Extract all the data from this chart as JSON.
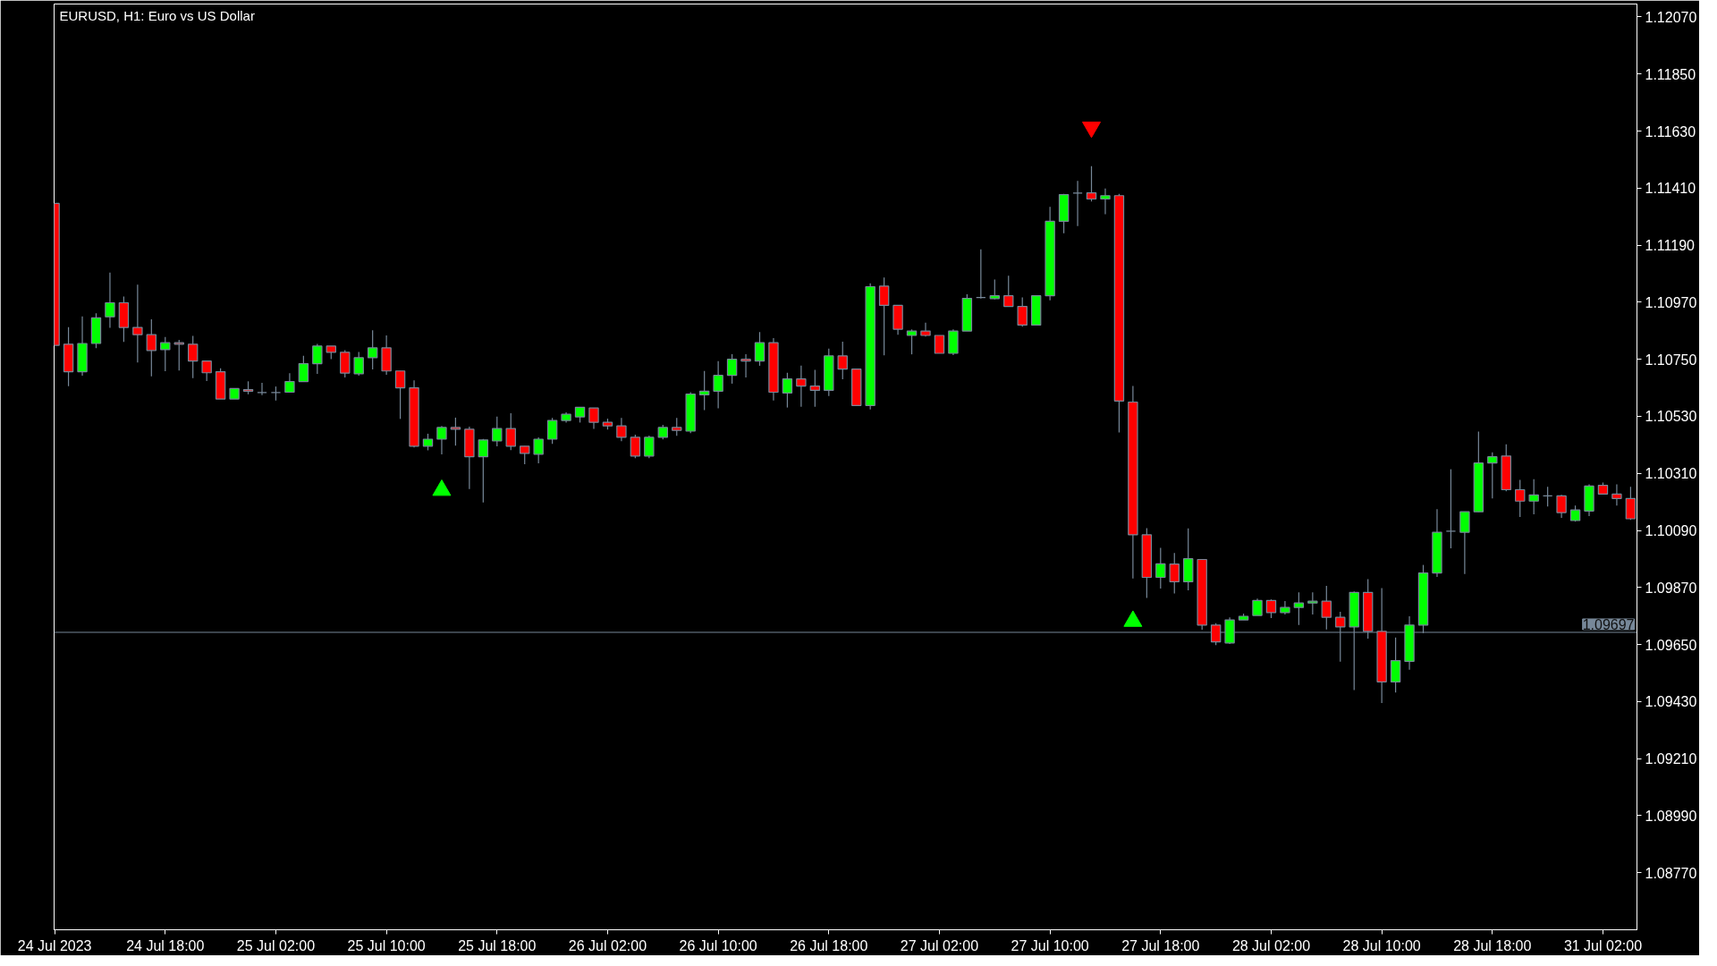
{
  "chart_data": {
    "type": "candlestick",
    "title": "EURUSD, H1:  Euro vs US Dollar",
    "categories": [
      "24 Jul 2023",
      null,
      null,
      null,
      null,
      null,
      null,
      null,
      "24 Jul 18:00",
      null,
      null,
      null,
      null,
      null,
      null,
      null,
      "25 Jul 02:00",
      null,
      null,
      null,
      null,
      null,
      null,
      null,
      "25 Jul 10:00",
      null,
      null,
      null,
      null,
      null,
      null,
      null,
      "25 Jul 18:00",
      null,
      null,
      null,
      null,
      null,
      null,
      null,
      "26 Jul 02:00",
      null,
      null,
      null,
      null,
      null,
      null,
      null,
      "26 Jul 10:00",
      null,
      null,
      null,
      null,
      null,
      null,
      null,
      "26 Jul 18:00",
      null,
      null,
      null,
      null,
      null,
      null,
      null,
      "27 Jul 02:00",
      null,
      null,
      null,
      null,
      null,
      null,
      null,
      "27 Jul 10:00",
      null,
      null,
      null,
      null,
      null,
      null,
      null,
      "27 Jul 18:00",
      null,
      null,
      null,
      null,
      null,
      null,
      null,
      "28 Jul 02:00",
      null,
      null,
      null,
      null,
      null,
      null,
      null,
      "28 Jul 10:00",
      null,
      null,
      null,
      null,
      null,
      null,
      null,
      "28 Jul 18:00",
      null,
      null,
      null,
      null,
      null,
      null,
      null,
      "31 Jul 02:00",
      null,
      null
    ],
    "ohlc": [
      [
        1.11351,
        1.11351,
        1.10804,
        1.10804
      ],
      [
        1.10808,
        1.10874,
        1.10646,
        1.10702
      ],
      [
        1.10702,
        1.10915,
        1.10687,
        1.10811
      ],
      [
        1.10811,
        1.10927,
        1.10793,
        1.1091
      ],
      [
        1.10914,
        1.11084,
        1.10871,
        1.10968
      ],
      [
        1.10968,
        1.10992,
        1.10817,
        1.10873
      ],
      [
        1.10873,
        1.11038,
        1.10738,
        1.10845
      ],
      [
        1.10845,
        1.10904,
        1.10684,
        1.10784
      ],
      [
        1.10787,
        1.10836,
        1.10704,
        1.10814
      ],
      [
        1.10814,
        1.10825,
        1.10707,
        1.10808
      ],
      [
        1.10808,
        1.1084,
        1.10677,
        1.10743
      ],
      [
        1.10743,
        1.10743,
        1.10666,
        1.10698
      ],
      [
        1.10702,
        1.10715,
        1.10597,
        1.10597
      ],
      [
        1.10597,
        1.10637,
        1.10597,
        1.10637
      ],
      [
        1.10633,
        1.10665,
        1.10615,
        1.10627
      ],
      [
        1.10622,
        1.10659,
        1.10612,
        1.10622
      ],
      [
        1.10622,
        1.10645,
        1.10591,
        1.10622
      ],
      [
        1.10623,
        1.10696,
        1.10623,
        1.10664
      ],
      [
        1.10664,
        1.10764,
        1.10664,
        1.10733
      ],
      [
        1.10733,
        1.10809,
        1.10694,
        1.10801
      ],
      [
        1.10801,
        1.10801,
        1.10751,
        1.10777
      ],
      [
        1.10777,
        1.10785,
        1.1068,
        1.10697
      ],
      [
        1.10694,
        1.10778,
        1.10687,
        1.10756
      ],
      [
        1.10756,
        1.10862,
        1.10711,
        1.10794
      ],
      [
        1.10794,
        1.10842,
        1.1069,
        1.10705
      ],
      [
        1.10705,
        1.10705,
        1.1052,
        1.1064
      ],
      [
        1.1064,
        1.10669,
        1.1041,
        1.10415
      ],
      [
        1.10415,
        1.10463,
        1.10399,
        1.10442
      ],
      [
        1.10442,
        1.10493,
        1.10383,
        1.10487
      ],
      [
        1.10487,
        1.10525,
        1.10417,
        1.1048
      ],
      [
        1.1048,
        1.1049,
        1.1025,
        1.10374
      ],
      [
        1.10374,
        1.10443,
        1.10198,
        1.10439
      ],
      [
        1.10435,
        1.10529,
        1.10414,
        1.10483
      ],
      [
        1.10483,
        1.10542,
        1.104,
        1.10415
      ],
      [
        1.10415,
        1.10415,
        1.10345,
        1.10387
      ],
      [
        1.10384,
        1.10449,
        1.10349,
        1.10442
      ],
      [
        1.10442,
        1.10524,
        1.10424,
        1.10514
      ],
      [
        1.10514,
        1.10545,
        1.10506,
        1.10538
      ],
      [
        1.10528,
        1.10565,
        1.10506,
        1.10565
      ],
      [
        1.10562,
        1.10562,
        1.10482,
        1.10507
      ],
      [
        1.10507,
        1.10521,
        1.10479,
        1.10493
      ],
      [
        1.10493,
        1.10524,
        1.10434,
        1.10449
      ],
      [
        1.10449,
        1.10459,
        1.10369,
        1.10377
      ],
      [
        1.10377,
        1.10456,
        1.10369,
        1.10449
      ],
      [
        1.10449,
        1.10497,
        1.10441,
        1.10487
      ],
      [
        1.10487,
        1.10524,
        1.10455,
        1.10476
      ],
      [
        1.10473,
        1.10623,
        1.10465,
        1.10616
      ],
      [
        1.10613,
        1.10705,
        1.10554,
        1.10627
      ],
      [
        1.10627,
        1.10743,
        1.10561,
        1.10688
      ],
      [
        1.10688,
        1.1077,
        1.10656,
        1.1075
      ],
      [
        1.1075,
        1.1077,
        1.1068,
        1.10743
      ],
      [
        1.10743,
        1.10855,
        1.10725,
        1.10814
      ],
      [
        1.10814,
        1.10832,
        1.10591,
        1.10623
      ],
      [
        1.1062,
        1.10698,
        1.10564,
        1.10674
      ],
      [
        1.10674,
        1.10726,
        1.10567,
        1.10647
      ],
      [
        1.10647,
        1.10709,
        1.10567,
        1.1063
      ],
      [
        1.1063,
        1.10791,
        1.10608,
        1.10763
      ],
      [
        1.10763,
        1.10818,
        1.10673,
        1.10712
      ],
      [
        1.10712,
        1.10712,
        1.10572,
        1.10572
      ],
      [
        1.10572,
        1.11043,
        1.10557,
        1.1103
      ],
      [
        1.11032,
        1.11065,
        1.10765,
        1.10958
      ],
      [
        1.10958,
        1.10958,
        1.10845,
        1.10866
      ],
      [
        1.10842,
        1.10865,
        1.10769,
        1.10859
      ],
      [
        1.10859,
        1.10891,
        1.10838,
        1.10842
      ],
      [
        1.10842,
        1.10842,
        1.10773,
        1.10773
      ],
      [
        1.10773,
        1.10865,
        1.10766,
        1.10859
      ],
      [
        1.10859,
        1.11001,
        1.10859,
        1.10985
      ],
      [
        1.10988,
        1.11174,
        1.10984,
        1.10988
      ],
      [
        1.10984,
        1.11058,
        1.10981,
        1.10995
      ],
      [
        1.10995,
        1.11072,
        1.10954,
        1.10954
      ],
      [
        1.10954,
        1.10989,
        1.10876,
        1.10882
      ],
      [
        1.10882,
        1.10995,
        1.10882,
        1.10995
      ],
      [
        1.10995,
        1.11338,
        1.10977,
        1.11282
      ],
      [
        1.11282,
        1.11388,
        1.11236,
        1.11385
      ],
      [
        1.11391,
        1.11438,
        1.11264,
        1.11391
      ],
      [
        1.11392,
        1.11495,
        1.11359,
        1.11368
      ],
      [
        1.11368,
        1.11409,
        1.11309,
        1.11381
      ],
      [
        1.11381,
        1.11388,
        1.10468,
        1.10589
      ],
      [
        1.10585,
        1.10647,
        1.09905,
        1.10073
      ],
      [
        1.10073,
        1.10099,
        1.0983,
        1.09909
      ],
      [
        1.09909,
        1.10023,
        1.09866,
        1.09961
      ],
      [
        1.0996,
        1.10003,
        1.09847,
        1.09892
      ],
      [
        1.09892,
        1.10098,
        1.09859,
        1.09981
      ],
      [
        1.09978,
        1.09978,
        1.09707,
        1.09725
      ],
      [
        1.09725,
        1.09732,
        1.09648,
        1.0966
      ],
      [
        1.09656,
        1.09755,
        1.09652,
        1.09745
      ],
      [
        1.09745,
        1.09769,
        1.09745,
        1.09759
      ],
      [
        1.09762,
        1.09827,
        1.09762,
        1.0982
      ],
      [
        1.0982,
        1.09824,
        1.09752,
        1.09773
      ],
      [
        1.09773,
        1.09818,
        1.09766,
        1.09793
      ],
      [
        1.09793,
        1.09851,
        1.09725,
        1.0981
      ],
      [
        1.0981,
        1.09851,
        1.09766,
        1.09817
      ],
      [
        1.09817,
        1.09876,
        1.09708,
        1.09755
      ],
      [
        1.09755,
        1.09776,
        1.09584,
        1.09718
      ],
      [
        1.09718,
        1.09855,
        1.09474,
        1.09851
      ],
      [
        1.09851,
        1.09902,
        1.09673,
        1.09701
      ],
      [
        1.09701,
        1.09868,
        1.09424,
        1.09506
      ],
      [
        1.09506,
        1.09677,
        1.09465,
        1.09588
      ],
      [
        1.09585,
        1.09759,
        1.09553,
        1.09725
      ],
      [
        1.09725,
        1.09957,
        1.09694,
        1.09926
      ],
      [
        1.09926,
        1.10172,
        1.09911,
        1.10083
      ],
      [
        1.10087,
        1.10326,
        1.10021,
        1.10087
      ],
      [
        1.10083,
        1.10162,
        1.09922,
        1.10162
      ],
      [
        1.10162,
        1.10471,
        1.10162,
        1.1035
      ],
      [
        1.1035,
        1.10391,
        1.10213,
        1.10374
      ],
      [
        1.10377,
        1.10422,
        1.10241,
        1.10247
      ],
      [
        1.10247,
        1.10285,
        1.10142,
        1.10203
      ],
      [
        1.10203,
        1.10288,
        1.10152,
        1.10227
      ],
      [
        1.10223,
        1.10258,
        1.10182,
        1.10223
      ],
      [
        1.10223,
        1.10227,
        1.10138,
        1.10159
      ],
      [
        1.10128,
        1.10186,
        1.10124,
        1.10169
      ],
      [
        1.10165,
        1.10268,
        1.10145,
        1.10261
      ],
      [
        1.10264,
        1.10275,
        1.1023,
        1.1023
      ],
      [
        1.1023,
        1.10268,
        1.10186,
        1.10213
      ],
      [
        1.10213,
        1.10258,
        1.10131,
        1.10135
      ]
    ],
    "colors": [
      "#ff0000",
      "#ff0000",
      "#00ff00",
      "#00ff00",
      "#00ff00",
      "#ff0000",
      "#ff0000",
      "#ff0000",
      "#00ff00",
      "#ff0000",
      "#ff0000",
      "#ff0000",
      "#ff0000",
      "#00ff00",
      "#ff0000",
      "#778899",
      "#778899",
      "#00ff00",
      "#00ff00",
      "#00ff00",
      "#ff0000",
      "#ff0000",
      "#00ff00",
      "#00ff00",
      "#ff0000",
      "#ff0000",
      "#ff0000",
      "#00ff00",
      "#00ff00",
      "#ff0000",
      "#ff0000",
      "#00ff00",
      "#00ff00",
      "#ff0000",
      "#ff0000",
      "#00ff00",
      "#00ff00",
      "#00ff00",
      "#00ff00",
      "#ff0000",
      "#ff0000",
      "#ff0000",
      "#ff0000",
      "#00ff00",
      "#00ff00",
      "#ff0000",
      "#00ff00",
      "#00ff00",
      "#00ff00",
      "#00ff00",
      "#ff0000",
      "#00ff00",
      "#ff0000",
      "#00ff00",
      "#ff0000",
      "#ff0000",
      "#00ff00",
      "#ff0000",
      "#ff0000",
      "#00ff00",
      "#ff0000",
      "#ff0000",
      "#00ff00",
      "#ff0000",
      "#ff0000",
      "#00ff00",
      "#00ff00",
      "#778899",
      "#00ff00",
      "#ff0000",
      "#ff0000",
      "#00ff00",
      "#00ff00",
      "#00ff00",
      "#778899",
      "#ff0000",
      "#00ff00",
      "#ff0000",
      "#ff0000",
      "#ff0000",
      "#00ff00",
      "#ff0000",
      "#00ff00",
      "#ff0000",
      "#ff0000",
      "#00ff00",
      "#00ff00",
      "#00ff00",
      "#ff0000",
      "#00ff00",
      "#00ff00",
      "#00ff00",
      "#ff0000",
      "#ff0000",
      "#00ff00",
      "#ff0000",
      "#ff0000",
      "#00ff00",
      "#00ff00",
      "#00ff00",
      "#00ff00",
      "#778899",
      "#00ff00",
      "#00ff00",
      "#00ff00",
      "#ff0000",
      "#ff0000",
      "#00ff00",
      "#778899",
      "#ff0000",
      "#00ff00",
      "#00ff00",
      "#ff0000",
      "#ff0000",
      "#ff0000"
    ],
    "series": [
      {
        "type": "scatter",
        "color": "#00ff00",
        "values": [
          null,
          null,
          null,
          null,
          null,
          null,
          null,
          null,
          null,
          null,
          null,
          null,
          null,
          null,
          null,
          null,
          null,
          null,
          null,
          null,
          null,
          null,
          null,
          null,
          null,
          null,
          null,
          null,
          1.10245,
          null,
          null,
          null,
          null,
          null,
          null,
          null,
          null,
          null,
          null,
          null,
          null,
          null,
          null,
          null,
          null,
          null,
          null,
          null,
          null,
          null,
          null,
          null,
          null,
          null,
          null,
          null,
          null,
          null,
          null,
          null,
          null,
          null,
          null,
          null,
          null,
          null,
          null,
          null,
          null,
          null,
          null,
          null,
          null,
          null,
          null,
          null,
          null,
          null,
          1.0974,
          null,
          null,
          null,
          null,
          null,
          null,
          null,
          null,
          null,
          null,
          null,
          null,
          null,
          null,
          null,
          null,
          null,
          null,
          null,
          null,
          null,
          null,
          null,
          null,
          null,
          null,
          null,
          null,
          null,
          null,
          null,
          null,
          null,
          null,
          null,
          null
        ]
      },
      {
        "type": "scatter",
        "color": "#ff0000",
        "values": [
          null,
          null,
          null,
          null,
          null,
          null,
          null,
          null,
          null,
          null,
          null,
          null,
          null,
          null,
          null,
          null,
          null,
          null,
          null,
          null,
          null,
          null,
          null,
          null,
          null,
          null,
          null,
          null,
          null,
          null,
          null,
          null,
          null,
          null,
          null,
          null,
          null,
          null,
          null,
          null,
          null,
          null,
          null,
          null,
          null,
          null,
          null,
          null,
          null,
          null,
          null,
          null,
          null,
          null,
          null,
          null,
          null,
          null,
          null,
          null,
          null,
          null,
          null,
          null,
          null,
          null,
          null,
          null,
          null,
          null,
          null,
          null,
          null,
          null,
          null,
          1.11645,
          null,
          null,
          null,
          null,
          null,
          null,
          null,
          null,
          null,
          null,
          null,
          null,
          null,
          null,
          null,
          null,
          null,
          null,
          null,
          null,
          null,
          null,
          null,
          null,
          null,
          null,
          null,
          null,
          null,
          null,
          null,
          null,
          null,
          null,
          null,
          null,
          null,
          null,
          null
        ]
      }
    ],
    "marker": "triangle",
    "ylim": [
      1.0855,
      1.1212
    ],
    "yticks": [
      {
        "value": 1.1207,
        "label": "1.12070"
      },
      {
        "value": 1.1185,
        "label": "1.11850"
      },
      {
        "value": 1.1163,
        "label": "1.11630"
      },
      {
        "value": 1.1141,
        "label": "1.11410"
      },
      {
        "value": 1.1119,
        "label": "1.11190"
      },
      {
        "value": 1.1097,
        "label": "1.10970"
      },
      {
        "value": 1.1075,
        "label": "1.10750"
      },
      {
        "value": 1.1053,
        "label": "1.10530"
      },
      {
        "value": 1.1031,
        "label": "1.10310"
      },
      {
        "value": 1.1009,
        "label": "1.10090"
      },
      {
        "value": 1.0987,
        "label": "1.09870"
      },
      {
        "value": 1.0965,
        "label": "1.09650"
      },
      {
        "value": 1.0943,
        "label": "1.09430"
      },
      {
        "value": 1.0921,
        "label": "1.09210"
      },
      {
        "value": 1.0899,
        "label": "1.08990"
      },
      {
        "value": 1.0877,
        "label": "1.08770"
      }
    ],
    "ref_lines": [
      {
        "axis": "y",
        "value": 1.09697,
        "label": "1.09697",
        "color": "#778899"
      }
    ]
  }
}
